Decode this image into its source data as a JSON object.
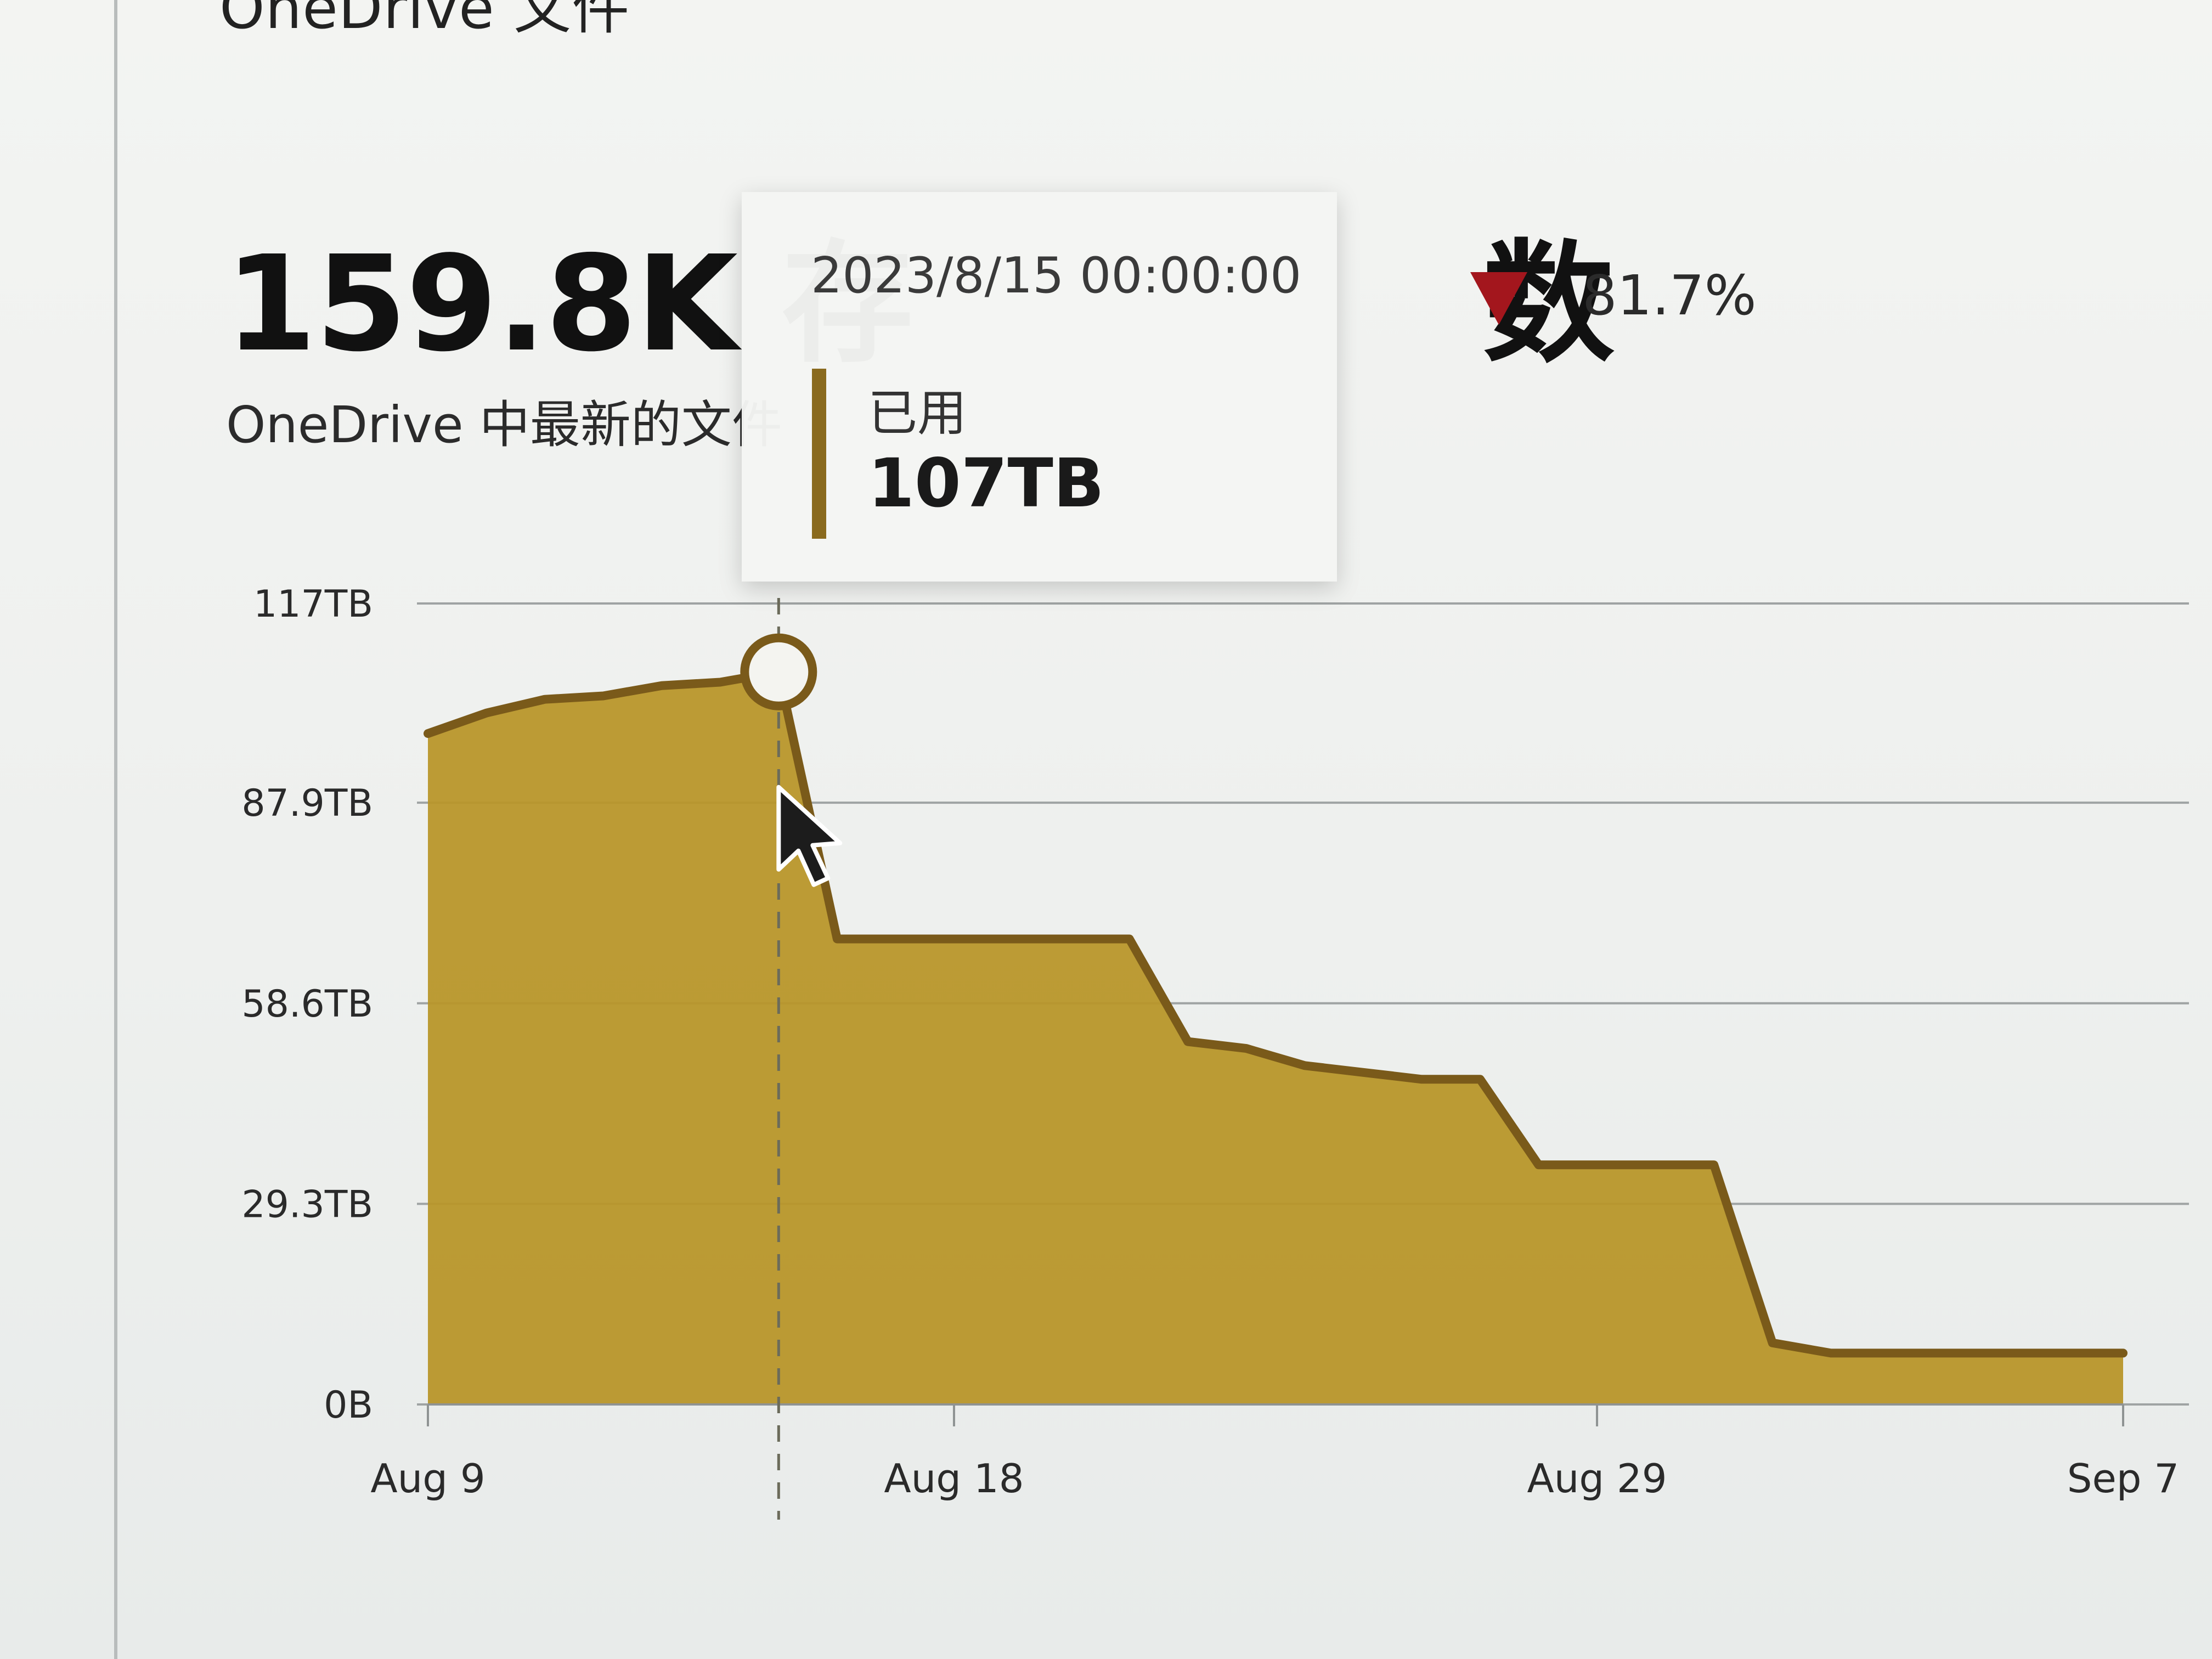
{
  "card": {
    "title": "OneDrive 文件",
    "metric": "159.8K 存",
    "metric_suffix": "数",
    "subtitle": "OneDrive 中最新的文件",
    "trend": {
      "direction": "down",
      "value": "81.7%",
      "color": "#a3161d"
    }
  },
  "tooltip": {
    "date": "2023/8/15 00:00:00",
    "series_label": "已用",
    "value": "107TB",
    "swatch_color": "#8a6a1e"
  },
  "chart_data": {
    "type": "area",
    "title": "",
    "xlabel": "",
    "ylabel": "",
    "ylim": [
      0,
      117
    ],
    "unit": "TB",
    "yticks": [
      {
        "value": 117,
        "label": "117TB"
      },
      {
        "value": 87.9,
        "label": "87.9TB"
      },
      {
        "value": 58.6,
        "label": "58.6TB"
      },
      {
        "value": 29.3,
        "label": "29.3TB"
      },
      {
        "value": 0,
        "label": "0B"
      }
    ],
    "xticks": [
      {
        "day": 0,
        "label": "Aug 9"
      },
      {
        "day": 9,
        "label": "Aug 18"
      },
      {
        "day": 20,
        "label": "Aug 29"
      },
      {
        "day": 29,
        "label": "Sep 7"
      }
    ],
    "x": [
      "Aug 9",
      "Aug 10",
      "Aug 11",
      "Aug 12",
      "Aug 13",
      "Aug 14",
      "Aug 15",
      "Aug 16",
      "Aug 17",
      "Aug 18",
      "Aug 19",
      "Aug 20",
      "Aug 21",
      "Aug 22",
      "Aug 23",
      "Aug 24",
      "Aug 25",
      "Aug 26",
      "Aug 27",
      "Aug 28",
      "Aug 29",
      "Aug 30",
      "Aug 31",
      "Sep 1",
      "Sep 2",
      "Sep 3",
      "Sep 4",
      "Sep 5",
      "Sep 6",
      "Sep 7"
    ],
    "series": [
      {
        "name": "已用",
        "color": "#b8962a",
        "line_color": "#7a5a1a",
        "values": [
          98,
          101,
          103,
          103.5,
          105,
          105.5,
          107,
          68,
          68,
          68,
          68,
          68,
          68,
          53,
          52,
          49.5,
          48.5,
          47.5,
          47.5,
          35,
          35,
          35,
          35,
          9,
          7.5,
          7.5,
          7.5,
          7.5,
          7.5,
          7.5
        ]
      }
    ],
    "highlight_index": 6,
    "grid": true,
    "legend": "none"
  }
}
